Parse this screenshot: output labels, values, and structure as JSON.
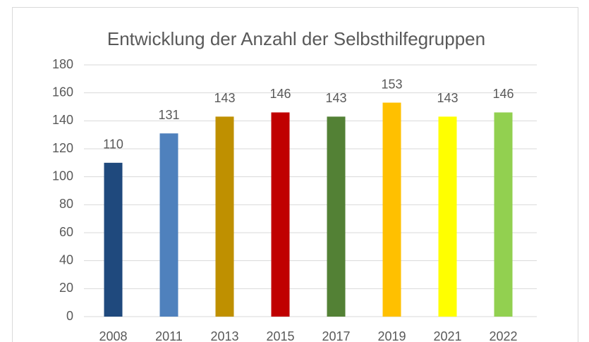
{
  "chart_data": {
    "type": "bar",
    "title": "Entwicklung der Anzahl der Selbsthilfegruppen",
    "categories": [
      "2008",
      "2011",
      "2013",
      "2015",
      "2017",
      "2019",
      "2021",
      "2022"
    ],
    "values": [
      110,
      131,
      143,
      146,
      143,
      153,
      143,
      146
    ],
    "colors": [
      "#1f497d",
      "#4f81bd",
      "#bf9000",
      "#c00000",
      "#538135",
      "#ffc000",
      "#ffff00",
      "#92d050"
    ],
    "ylim": [
      0,
      180
    ],
    "yticks": [
      0,
      20,
      40,
      60,
      80,
      100,
      120,
      140,
      160,
      180
    ],
    "grid": true
  }
}
